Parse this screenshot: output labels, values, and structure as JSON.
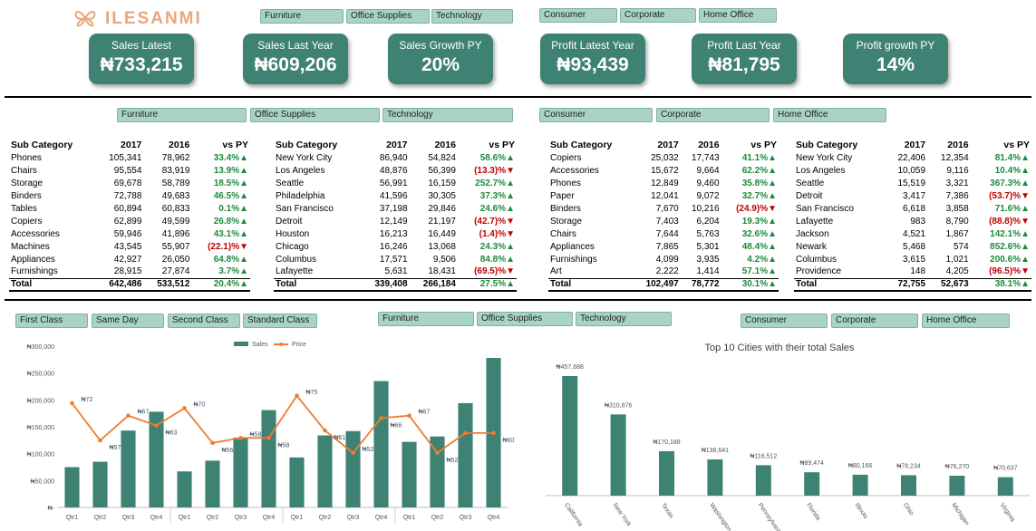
{
  "brand": {
    "name": "ILESANMI"
  },
  "colors": {
    "kpi_bg": "#3e8273",
    "slicer_bg": "#a9d4c4",
    "bar": "#3e8273",
    "line": "#ed7d31",
    "positive": "#1e8a3c",
    "negative": "#c00000"
  },
  "top_slicers": {
    "category": [
      "Furniture",
      "Office Supplies",
      "Technology"
    ],
    "segment": [
      "Consumer",
      "Corporate",
      "Home Office"
    ]
  },
  "kpis": [
    {
      "title": "Sales Latest",
      "value": "₦733,215"
    },
    {
      "title": "Sales Last Year",
      "value": "₦609,206"
    },
    {
      "title": "Sales Growth PY",
      "value": "20%"
    },
    {
      "title": "Profit Latest Year",
      "value": "₦93,439"
    },
    {
      "title": "Profit Last Year",
      "value": "₦81,795"
    },
    {
      "title": "Profit growth PY",
      "value": "14%"
    }
  ],
  "mid_slicers": {
    "category": [
      "Furniture",
      "Office Supplies",
      "Technology"
    ],
    "segment": [
      "Consumer",
      "Corporate",
      "Home Office"
    ]
  },
  "tables": [
    {
      "headers": [
        "Sub Category",
        "2017",
        "2016",
        "vs PY"
      ],
      "rows": [
        [
          "Phones",
          "105,341",
          "78,962",
          "33.4%▲"
        ],
        [
          "Chairs",
          "95,554",
          "83,919",
          "13.9%▲"
        ],
        [
          "Storage",
          "69,678",
          "58,789",
          "18.5%▲"
        ],
        [
          "Binders",
          "72,788",
          "49,683",
          "46.5%▲"
        ],
        [
          "Tables",
          "60,894",
          "60,833",
          "0.1%▲"
        ],
        [
          "Copiers",
          "62,899",
          "49,599",
          "26.8%▲"
        ],
        [
          "Accessories",
          "59,946",
          "41,896",
          "43.1%▲"
        ],
        [
          "Machines",
          "43,545",
          "55,907",
          "(22.1)%▼"
        ],
        [
          "Appliances",
          "42,927",
          "26,050",
          "64.8%▲"
        ],
        [
          "Furnishings",
          "28,915",
          "27,874",
          "3.7%▲"
        ]
      ],
      "total": [
        "Total",
        "642,486",
        "533,512",
        "20.4%▲"
      ]
    },
    {
      "headers": [
        "Sub Category",
        "2017",
        "2016",
        "vs PY"
      ],
      "rows": [
        [
          "New York City",
          "86,940",
          "54,824",
          "58.6%▲"
        ],
        [
          "Los Angeles",
          "48,876",
          "56,399",
          "(13.3)%▼"
        ],
        [
          "Seattle",
          "56,991",
          "16,159",
          "252.7%▲"
        ],
        [
          "Philadelphia",
          "41,596",
          "30,305",
          "37.3%▲"
        ],
        [
          "San Francisco",
          "37,198",
          "29,846",
          "24.6%▲"
        ],
        [
          "Detroit",
          "12,149",
          "21,197",
          "(42.7)%▼"
        ],
        [
          "Houston",
          "16,213",
          "16,449",
          "(1.4)%▼"
        ],
        [
          "Chicago",
          "16,246",
          "13,068",
          "24.3%▲"
        ],
        [
          "Columbus",
          "17,571",
          "9,506",
          "84.8%▲"
        ],
        [
          "Lafayette",
          "5,631",
          "18,431",
          "(69.5)%▼"
        ]
      ],
      "total": [
        "Total",
        "339,408",
        "266,184",
        "27.5%▲"
      ]
    },
    {
      "headers": [
        "Sub Category",
        "2017",
        "2016",
        "vs PY"
      ],
      "rows": [
        [
          "Copiers",
          "25,032",
          "17,743",
          "41.1%▲"
        ],
        [
          "Accessories",
          "15,672",
          "9,664",
          "62.2%▲"
        ],
        [
          "Phones",
          "12,849",
          "9,460",
          "35.8%▲"
        ],
        [
          "Paper",
          "12,041",
          "9,072",
          "32.7%▲"
        ],
        [
          "Binders",
          "7,670",
          "10,216",
          "(24.9)%▼"
        ],
        [
          "Storage",
          "7,403",
          "6,204",
          "19.3%▲"
        ],
        [
          "Chairs",
          "7,644",
          "5,763",
          "32.6%▲"
        ],
        [
          "Appliances",
          "7,865",
          "5,301",
          "48.4%▲"
        ],
        [
          "Furnishings",
          "4,099",
          "3,935",
          "4.2%▲"
        ],
        [
          "Art",
          "2,222",
          "1,414",
          "57.1%▲"
        ]
      ],
      "total": [
        "Total",
        "102,497",
        "78,772",
        "30.1%▲"
      ]
    },
    {
      "headers": [
        "Sub Category",
        "2017",
        "2016",
        "vs PY"
      ],
      "rows": [
        [
          "New York City",
          "22,406",
          "12,354",
          "81.4%▲"
        ],
        [
          "Los Angeles",
          "10,059",
          "9,116",
          "10.4%▲"
        ],
        [
          "Seattle",
          "15,519",
          "3,321",
          "367.3%▲"
        ],
        [
          "Detroit",
          "3,417",
          "7,386",
          "(53.7)%▼"
        ],
        [
          "San Francisco",
          "6,618",
          "3,858",
          "71.6%▲"
        ],
        [
          "Lafayette",
          "983",
          "8,790",
          "(88.8)%▼"
        ],
        [
          "Jackson",
          "4,521",
          "1,867",
          "142.1%▲"
        ],
        [
          "Newark",
          "5,468",
          "574",
          "852.6%▲"
        ],
        [
          "Columbus",
          "3,615",
          "1,021",
          "200.6%▲"
        ],
        [
          "Providence",
          "148",
          "4,205",
          "(96.5)%▼"
        ]
      ],
      "total": [
        "Total",
        "72,755",
        "52,673",
        "38.1%▲"
      ]
    }
  ],
  "bottom_slicers": {
    "ship_mode": [
      "First Class",
      "Same Day",
      "Second Class",
      "Standard Class"
    ],
    "category": [
      "Furniture",
      "Office Supplies",
      "Technology"
    ],
    "segment": [
      "Consumer",
      "Corporate",
      "Home Office"
    ]
  },
  "chart_data": [
    {
      "type": "bar",
      "legend": [
        "Sales",
        "Price"
      ],
      "legend_position": "top",
      "yticks": [
        "₦300,000",
        "₦250,000",
        "₦200,000",
        "₦150,000",
        "₦100,000",
        "₦50,000",
        "₦-"
      ],
      "ylim": [
        0,
        300000
      ],
      "categories": [
        "Qtr1",
        "Qtr2",
        "Qtr3",
        "Qtr4",
        "Qtr1",
        "Qtr2",
        "Qtr3",
        "Qtr4",
        "Qtr1",
        "Qtr2",
        "Qtr3",
        "Qtr4",
        "Qtr1",
        "Qtr2",
        "Qtr3",
        "Qtr4"
      ],
      "series": [
        {
          "name": "Sales",
          "type": "bar",
          "values": [
            75000,
            85000,
            143000,
            178000,
            67000,
            87000,
            130000,
            181000,
            93000,
            134000,
            142000,
            235000,
            122000,
            132000,
            194000,
            278000
          ]
        },
        {
          "name": "Price",
          "type": "line",
          "values": [
            72,
            57,
            67,
            63,
            70,
            56,
            58,
            58,
            75,
            61,
            52,
            66,
            67,
            52,
            60,
            60
          ],
          "labels": [
            "₦72",
            "₦57",
            "₦67",
            "₦63",
            "₦70",
            "₦56",
            "₦58",
            "₦58",
            "₦75",
            "₦61",
            "₦52",
            "₦66",
            "₦67",
            "₦52",
            "",
            "₦60"
          ]
        }
      ]
    },
    {
      "type": "bar",
      "title": "Top 10 Cities with their total Sales",
      "categories": [
        "California",
        "New York",
        "Texas",
        "Washington",
        "Pennsylvania",
        "Florida",
        "Illinois",
        "Ohio",
        "Michigan",
        "Virginia"
      ],
      "values": [
        457688,
        310876,
        170188,
        138641,
        116512,
        89474,
        80166,
        78234,
        76270,
        70637
      ],
      "data_labels": [
        "₦457,688",
        "₦310,876",
        "₦170,188",
        "₦138,641",
        "₦116,512",
        "₦89,474",
        "₦80,166",
        "₦78,234",
        "₦76,270",
        "₦70,637"
      ]
    }
  ]
}
